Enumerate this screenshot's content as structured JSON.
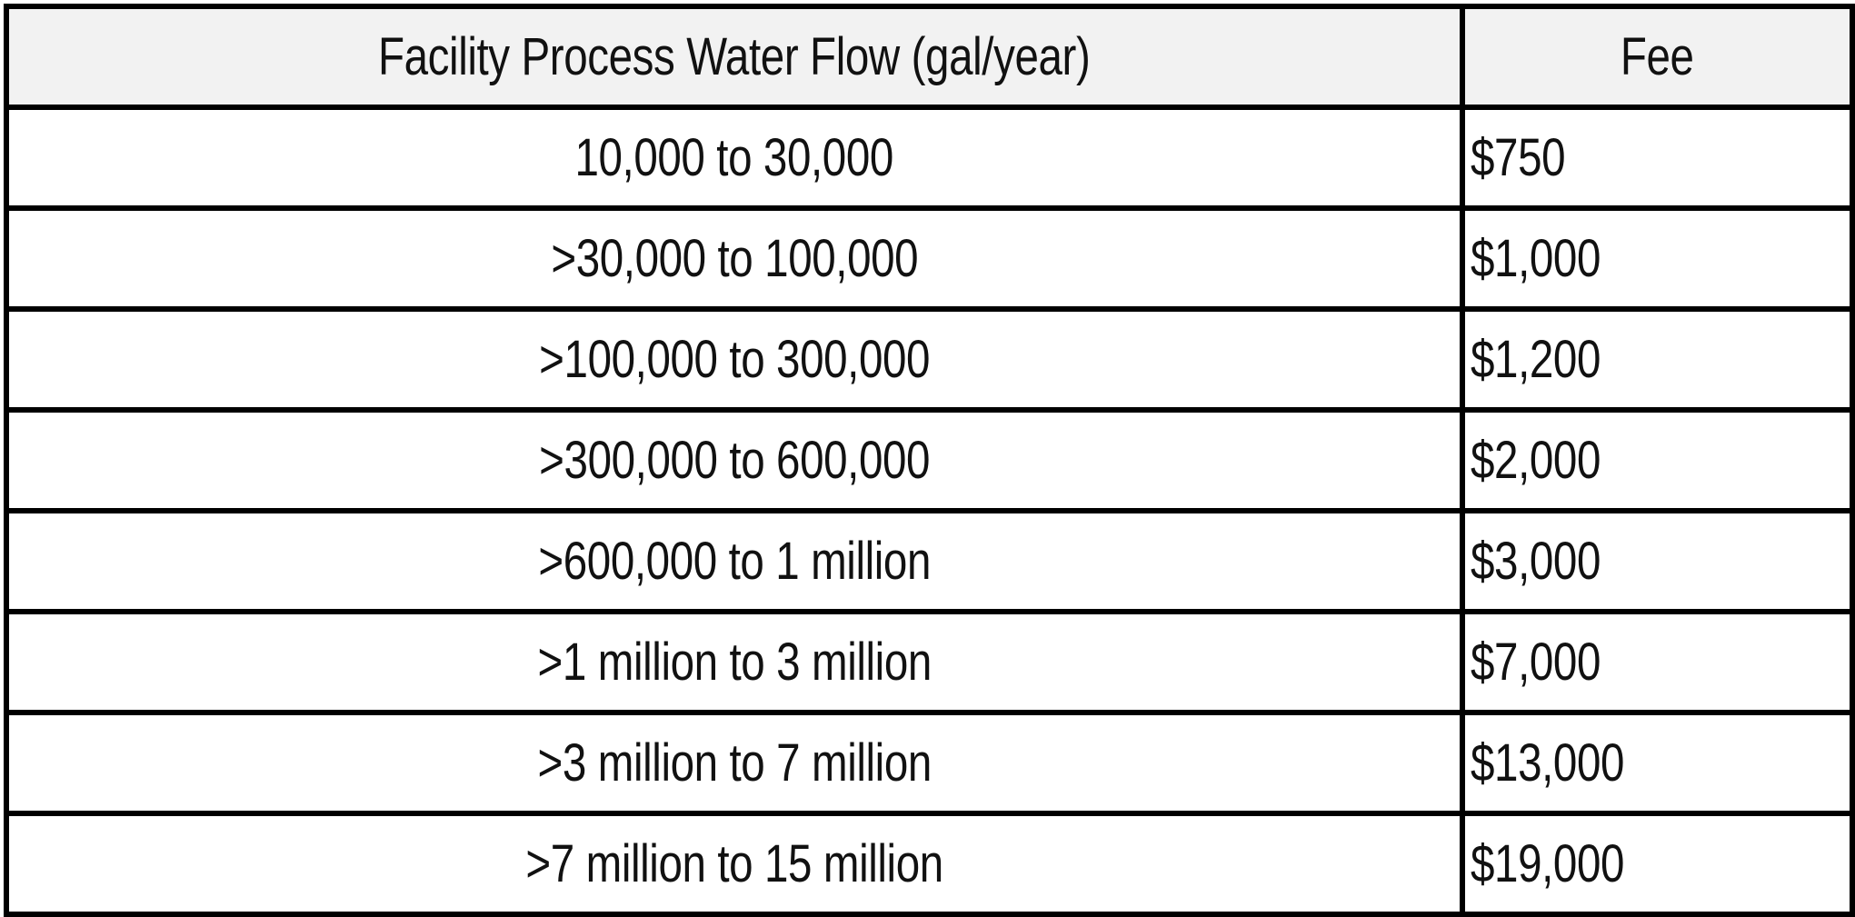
{
  "table": {
    "headers": {
      "flow": "Facility Process Water Flow (gal/year)",
      "fee": "Fee"
    },
    "rows": [
      {
        "flow": "10,000 to 30,000",
        "fee": "$750"
      },
      {
        "flow": ">30,000 to 100,000",
        "fee": "$1,000"
      },
      {
        "flow": ">100,000 to 300,000",
        "fee": "$1,200"
      },
      {
        "flow": ">300,000 to 600,000",
        "fee": "$2,000"
      },
      {
        "flow": ">600,000 to 1 million",
        "fee": "$3,000"
      },
      {
        "flow": ">1 million to 3 million",
        "fee": "$7,000"
      },
      {
        "flow": ">3 million to 7 million",
        "fee": "$13,000"
      },
      {
        "flow": ">7 million to 15 million",
        "fee": "$19,000"
      }
    ]
  }
}
